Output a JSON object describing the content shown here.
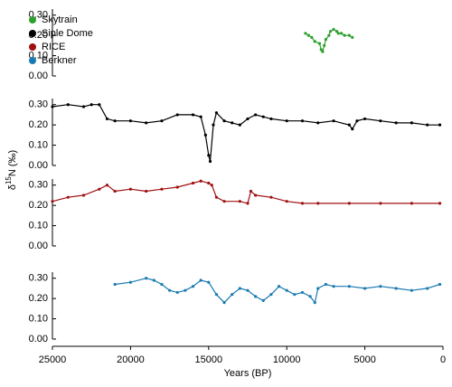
{
  "chart_data": [
    {
      "type": "line",
      "legend": "upper left",
      "series": [
        {
          "name": "Skytrain",
          "color": "#2ca02c",
          "x": [
            8800,
            8600,
            8400,
            8200,
            7900,
            7800,
            7700,
            7600,
            7500,
            7300,
            7200,
            7000,
            6800,
            6700,
            6500,
            6300,
            6000,
            5800
          ],
          "values": [
            0.21,
            0.2,
            0.19,
            0.17,
            0.16,
            0.13,
            0.12,
            0.15,
            0.18,
            0.2,
            0.22,
            0.23,
            0.22,
            0.21,
            0.21,
            0.2,
            0.2,
            0.19
          ]
        }
      ],
      "xlim": [
        25000,
        0
      ],
      "ylim": [
        0,
        0.33
      ],
      "yticks": [
        {
          "value": 0,
          "label": "0.00"
        },
        {
          "value": 0.1,
          "label": "0.10"
        },
        {
          "value": 0.2,
          "label": "0.20"
        },
        {
          "value": 0.3,
          "label": "0.30"
        }
      ]
    },
    {
      "type": "line",
      "series": [
        {
          "name": "Siple Dome",
          "color": "#000000",
          "x": [
            25000,
            24000,
            23000,
            22500,
            22000,
            21500,
            21000,
            20000,
            19000,
            18000,
            17000,
            16000,
            15500,
            15200,
            15000,
            14900,
            14700,
            14500,
            14000,
            13500,
            13000,
            12500,
            12000,
            11500,
            11000,
            10000,
            9000,
            8000,
            7000,
            6000,
            5800,
            5500,
            5000,
            4000,
            3000,
            2000,
            1000,
            200
          ],
          "values": [
            0.29,
            0.3,
            0.29,
            0.3,
            0.3,
            0.23,
            0.22,
            0.22,
            0.21,
            0.22,
            0.25,
            0.25,
            0.24,
            0.15,
            0.05,
            0.02,
            0.2,
            0.26,
            0.22,
            0.21,
            0.2,
            0.23,
            0.25,
            0.24,
            0.23,
            0.22,
            0.22,
            0.21,
            0.22,
            0.2,
            0.18,
            0.22,
            0.23,
            0.22,
            0.21,
            0.21,
            0.2,
            0.2
          ]
        }
      ],
      "xlim": [
        25000,
        0
      ],
      "ylim": [
        0,
        0.33
      ],
      "yticks": [
        {
          "value": 0,
          "label": "0.00"
        },
        {
          "value": 0.1,
          "label": "0.10"
        },
        {
          "value": 0.2,
          "label": "0.20"
        },
        {
          "value": 0.3,
          "label": "0.30"
        }
      ]
    },
    {
      "type": "line",
      "ylabel_parts": [
        "δ",
        "15",
        "N (‰)"
      ],
      "series": [
        {
          "name": "RICE",
          "color": "#a01010",
          "x": [
            25000,
            24000,
            23000,
            22000,
            21500,
            21000,
            20000,
            19000,
            18000,
            17000,
            16000,
            15500,
            15000,
            14800,
            14500,
            14000,
            13000,
            12500,
            12300,
            12000,
            11000,
            10000,
            9000,
            8000,
            6000,
            4000,
            2000,
            200
          ],
          "values": [
            0.22,
            0.24,
            0.25,
            0.28,
            0.3,
            0.27,
            0.28,
            0.27,
            0.28,
            0.29,
            0.31,
            0.32,
            0.31,
            0.3,
            0.24,
            0.22,
            0.22,
            0.21,
            0.27,
            0.25,
            0.24,
            0.22,
            0.21,
            0.21,
            0.21,
            0.21,
            0.21,
            0.21
          ]
        }
      ],
      "xlim": [
        25000,
        0
      ],
      "ylim": [
        0,
        0.33
      ],
      "yticks": [
        {
          "value": 0,
          "label": "0.00"
        },
        {
          "value": 0.1,
          "label": "0.10"
        },
        {
          "value": 0.2,
          "label": "0.20"
        },
        {
          "value": 0.3,
          "label": "0.30"
        }
      ]
    },
    {
      "type": "line",
      "xlabel": "Years (BP)",
      "series": [
        {
          "name": "Berkner",
          "color": "#1a7ab0",
          "x": [
            21000,
            20000,
            19000,
            18500,
            18000,
            17500,
            17000,
            16500,
            16000,
            15500,
            15000,
            14500,
            14000,
            13500,
            13000,
            12500,
            12000,
            11500,
            11000,
            10500,
            10000,
            9500,
            9000,
            8500,
            8200,
            8000,
            7500,
            7000,
            6000,
            5000,
            4000,
            3000,
            2000,
            1000,
            200
          ],
          "values": [
            0.27,
            0.28,
            0.3,
            0.29,
            0.27,
            0.24,
            0.23,
            0.24,
            0.26,
            0.29,
            0.28,
            0.22,
            0.18,
            0.22,
            0.25,
            0.24,
            0.21,
            0.19,
            0.22,
            0.26,
            0.24,
            0.22,
            0.23,
            0.21,
            0.18,
            0.25,
            0.27,
            0.26,
            0.26,
            0.25,
            0.26,
            0.25,
            0.24,
            0.25,
            0.27
          ]
        }
      ],
      "xlim": [
        25000,
        0
      ],
      "ylim": [
        0,
        0.33
      ],
      "yticks": [
        {
          "value": 0,
          "label": "0.00"
        },
        {
          "value": 0.1,
          "label": "0.10"
        },
        {
          "value": 0.2,
          "label": "0.20"
        },
        {
          "value": 0.3,
          "label": "0.30"
        }
      ],
      "xticks": [
        25000,
        20000,
        15000,
        10000,
        5000,
        0
      ]
    }
  ]
}
